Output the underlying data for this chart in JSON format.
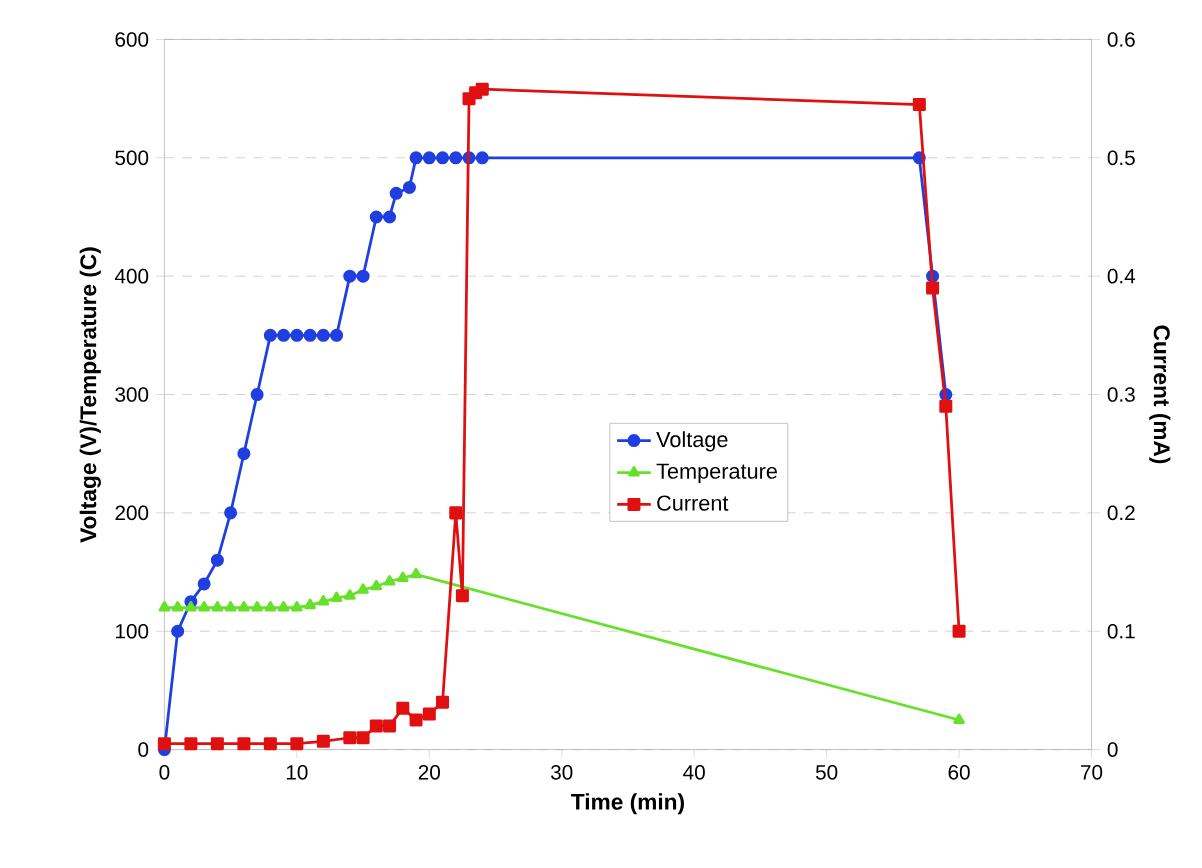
{
  "chart_data": {
    "type": "line",
    "xlabel": "Time (min)",
    "ylabel": "Voltage (V)/Temperature (C)",
    "y2label": "Current (mA)",
    "xlim": [
      0,
      70
    ],
    "xticks": [
      0,
      10,
      20,
      30,
      40,
      50,
      60,
      70
    ],
    "ylim": [
      0,
      600
    ],
    "yticks": [
      0,
      100,
      200,
      300,
      400,
      500,
      600
    ],
    "y2lim": [
      0,
      0.6
    ],
    "y2ticks": [
      0,
      0.1,
      0.2,
      0.3,
      0.4,
      0.5,
      0.6
    ],
    "grid": "y",
    "legend": "center",
    "series": [
      {
        "name": "Voltage",
        "color": "#1f3fe0",
        "marker": "circle",
        "x": [
          0,
          1,
          2,
          3,
          4,
          5,
          6,
          7,
          8,
          9,
          10,
          11,
          12,
          13,
          14,
          15,
          16,
          17,
          17.5,
          18.5,
          19,
          20,
          21,
          22,
          23,
          24,
          57,
          58,
          59
        ],
        "values": [
          0,
          100,
          125,
          140,
          160,
          200,
          250,
          300,
          350,
          350,
          350,
          350,
          350,
          350,
          400,
          400,
          450,
          450,
          470,
          475,
          500,
          500,
          500,
          500,
          500,
          500,
          500,
          400,
          300
        ]
      },
      {
        "name": "Temperature",
        "color": "#66e02a",
        "marker": "triangle",
        "x": [
          0,
          1,
          2,
          3,
          4,
          5,
          6,
          7,
          8,
          9,
          10,
          11,
          12,
          13,
          14,
          15,
          16,
          17,
          18,
          19,
          60
        ],
        "values": [
          120,
          120,
          120,
          120,
          120,
          120,
          120,
          120,
          120,
          120,
          120,
          122,
          125,
          128,
          130,
          135,
          138,
          142,
          145,
          148,
          25
        ]
      },
      {
        "name": "Current",
        "color": "#e01010",
        "marker": "square",
        "axis": "y2",
        "x": [
          0,
          2,
          4,
          6,
          8,
          10,
          12,
          14,
          15,
          16,
          17,
          18,
          19,
          20,
          21,
          22,
          22.5,
          23,
          23.5,
          24,
          57,
          58,
          59,
          60
        ],
        "values": [
          0.005,
          0.005,
          0.005,
          0.005,
          0.005,
          0.005,
          0.007,
          0.01,
          0.01,
          0.02,
          0.02,
          0.035,
          0.025,
          0.03,
          0.04,
          0.2,
          0.13,
          0.55,
          0.555,
          0.558,
          0.545,
          0.39,
          0.29,
          0.1
        ]
      }
    ]
  }
}
